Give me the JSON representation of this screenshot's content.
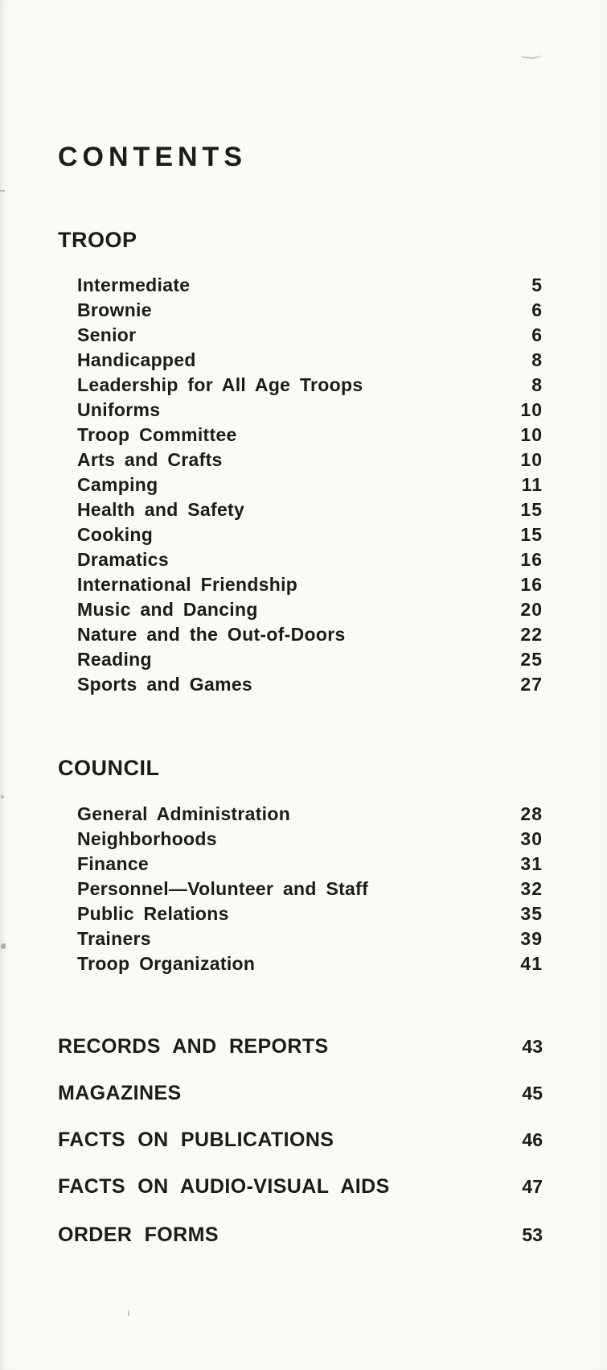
{
  "page": {
    "title": "CONTENTS",
    "ink_color": "#1b1b1b",
    "paper_color": "#fbfaf5"
  },
  "sections": [
    {
      "heading": "TROOP",
      "items": [
        {
          "label": "Intermediate",
          "page": "5"
        },
        {
          "label": "Brownie",
          "page": "6"
        },
        {
          "label": "Senior",
          "page": "6"
        },
        {
          "label": "Handicapped",
          "page": "8"
        },
        {
          "label": "Leadership for All Age Troops",
          "page": "8"
        },
        {
          "label": "Uniforms",
          "page": "10"
        },
        {
          "label": "Troop Committee",
          "page": "10"
        },
        {
          "label": "Arts and Crafts",
          "page": "10"
        },
        {
          "label": "Camping",
          "page": "11"
        },
        {
          "label": "Health and Safety",
          "page": "15"
        },
        {
          "label": "Cooking",
          "page": "15"
        },
        {
          "label": "Dramatics",
          "page": "16"
        },
        {
          "label": "International Friendship",
          "page": "16"
        },
        {
          "label": "Music and Dancing",
          "page": "20"
        },
        {
          "label": "Nature and the Out-of-Doors",
          "page": "22"
        },
        {
          "label": "Reading",
          "page": "25"
        },
        {
          "label": "Sports and Games",
          "page": "27"
        }
      ]
    },
    {
      "heading": "COUNCIL",
      "items": [
        {
          "label": "General Administration",
          "page": "28"
        },
        {
          "label": "Neighborhoods",
          "page": "30"
        },
        {
          "label": "Finance",
          "page": "31"
        },
        {
          "label": "Personnel—Volunteer and Staff",
          "page": "32"
        },
        {
          "label": "Public Relations",
          "page": "35"
        },
        {
          "label": "Trainers",
          "page": "39"
        },
        {
          "label": "Troop Organization",
          "page": "41"
        }
      ]
    }
  ],
  "majors": [
    {
      "label": "RECORDS AND REPORTS",
      "page": "43"
    },
    {
      "label": "MAGAZINES",
      "page": "45"
    },
    {
      "label": "FACTS ON PUBLICATIONS",
      "page": "46"
    },
    {
      "label": "FACTS ON AUDIO-VISUAL AIDS",
      "page": "47"
    },
    {
      "label": "ORDER FORMS",
      "page": "53"
    }
  ]
}
